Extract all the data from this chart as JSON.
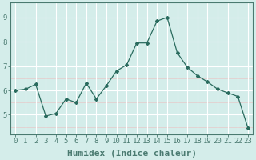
{
  "x": [
    0,
    1,
    2,
    3,
    4,
    5,
    6,
    7,
    8,
    9,
    10,
    11,
    12,
    13,
    14,
    15,
    16,
    17,
    18,
    19,
    20,
    21,
    22,
    23
  ],
  "y": [
    6.0,
    6.05,
    6.25,
    4.95,
    5.05,
    5.65,
    5.5,
    6.3,
    5.65,
    6.2,
    6.8,
    7.05,
    7.95,
    7.95,
    8.85,
    9.0,
    7.55,
    6.95,
    6.6,
    6.35,
    6.05,
    5.9,
    5.75,
    4.45
  ],
  "line_color": "#2a6b5e",
  "marker": "D",
  "marker_size": 2.0,
  "bg_color": "#d4edea",
  "grid_major_color": "#c0dbd7",
  "grid_minor_color": "#e0f0ee",
  "axis_color": "#4a7a70",
  "xlabel": "Humidex (Indice chaleur)",
  "xlabel_fontsize": 8,
  "tick_fontsize": 6.5,
  "ylim": [
    4.2,
    9.6
  ],
  "yticks": [
    5,
    6,
    7,
    8,
    9
  ],
  "xlim": [
    -0.5,
    23.5
  ],
  "fig_width": 3.2,
  "fig_height": 2.0,
  "dpi": 100
}
